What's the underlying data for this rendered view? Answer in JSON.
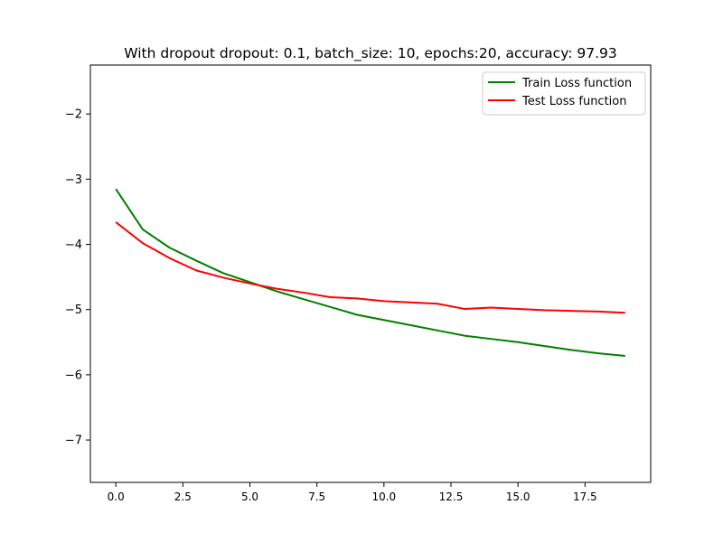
{
  "chart_data": {
    "type": "line",
    "title": "With dropout dropout: 0.1, batch_size: 10, epochs:20, accuracy: 97.93",
    "xlabel": "",
    "ylabel": "",
    "xlim": [
      -0.95,
      19.95
    ],
    "ylim": [
      -7.65,
      -1.25
    ],
    "xticks": [
      0.0,
      2.5,
      5.0,
      7.5,
      10.0,
      12.5,
      15.0,
      17.5
    ],
    "xtick_labels": [
      "0.0",
      "2.5",
      "5.0",
      "7.5",
      "10.0",
      "12.5",
      "15.0",
      "17.5"
    ],
    "yticks": [
      -7,
      -6,
      -5,
      -4,
      -3,
      -2
    ],
    "ytick_labels": [
      "−7",
      "−6",
      "−5",
      "−4",
      "−3",
      "−2"
    ],
    "grid": false,
    "legend_position": "top-right",
    "x": [
      0,
      1,
      2,
      3,
      4,
      5,
      6,
      7,
      8,
      9,
      10,
      11,
      12,
      13,
      14,
      15,
      16,
      17,
      18,
      19
    ],
    "series": [
      {
        "name": "Train Loss function",
        "color": "#008000",
        "values": [
          -3.15,
          -3.77,
          -4.05,
          -4.25,
          -4.44,
          -4.58,
          -4.72,
          -4.84,
          -4.96,
          -5.08,
          -5.16,
          -5.24,
          -5.32,
          -5.4,
          -5.45,
          -5.5,
          -5.56,
          -5.62,
          -5.67,
          -5.71
        ]
      },
      {
        "name": "Test Loss function",
        "color": "#ff0000",
        "values": [
          -3.66,
          -3.98,
          -4.21,
          -4.4,
          -4.51,
          -4.6,
          -4.68,
          -4.74,
          -4.81,
          -4.83,
          -4.87,
          -4.89,
          -4.91,
          -4.99,
          -4.97,
          -4.99,
          -5.01,
          -5.02,
          -5.03,
          -5.05
        ]
      }
    ]
  }
}
